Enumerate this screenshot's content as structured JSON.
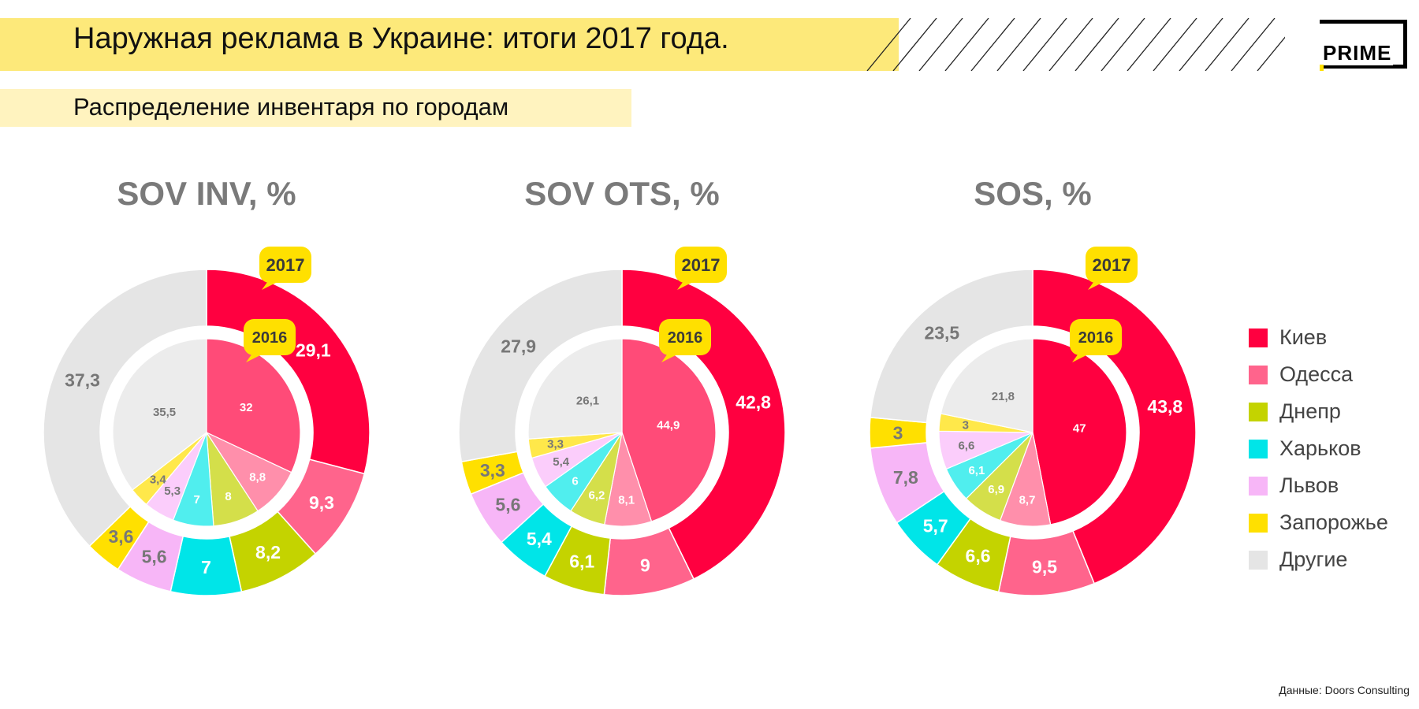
{
  "header": {
    "title": "Наружная реклама в Украине: итоги 2017 года.",
    "subtitle": "Распределение инвентаря по городам",
    "logo_text": "PRIME"
  },
  "source": "Данные: Doors Consulting",
  "legend": [
    {
      "label": "Киев",
      "color": "#ff0040"
    },
    {
      "label": "Одесса",
      "color": "#ff648c"
    },
    {
      "label": "Днепр",
      "color": "#c4d300"
    },
    {
      "label": "Харьков",
      "color": "#00e5e8"
    },
    {
      "label": "Львов",
      "color": "#f7b6f7"
    },
    {
      "label": "Запорожье",
      "color": "#ffe000"
    },
    {
      "label": "Другие",
      "color": "#e5e5e5"
    }
  ],
  "callouts": {
    "outer": "2017",
    "inner": "2016"
  },
  "chart_data": [
    {
      "type": "pie",
      "title": "SOV INV, %",
      "categories": [
        "Киев",
        "Одесса",
        "Днепр",
        "Харьков",
        "Львов",
        "Запорожье",
        "Другие"
      ],
      "series": [
        {
          "name": "2017",
          "values": [
            29.1,
            9.3,
            8.2,
            7,
            5.6,
            3.6,
            37.3
          ],
          "labels": [
            "29,1",
            "9,3",
            "8,2",
            "7",
            "5,6",
            "3,6",
            "37,3"
          ]
        },
        {
          "name": "2016",
          "values": [
            32,
            8.8,
            8,
            7,
            5.3,
            3.4,
            35.5
          ],
          "labels": [
            "32",
            "8,8",
            "8",
            "7",
            "5,3",
            "3,4",
            "35,5"
          ]
        }
      ]
    },
    {
      "type": "pie",
      "title": "SOV OTS, %",
      "categories": [
        "Киев",
        "Одесса",
        "Днепр",
        "Харьков",
        "Львов",
        "Запорожье",
        "Другие"
      ],
      "series": [
        {
          "name": "2017",
          "values": [
            42.8,
            9,
            6.1,
            5.4,
            5.6,
            3.3,
            27.9
          ],
          "labels": [
            "42,8",
            "9",
            "6,1",
            "5,4",
            "5,6",
            "3,3",
            "27,9"
          ]
        },
        {
          "name": "2016",
          "values": [
            44.9,
            8.1,
            6.2,
            6,
            5.4,
            3.3,
            26.1
          ],
          "labels": [
            "44,9",
            "8,1",
            "6,2",
            "6",
            "5,4",
            "3,3",
            "26,1"
          ]
        }
      ]
    },
    {
      "type": "pie",
      "title": "SOS, %",
      "categories": [
        "Киев",
        "Одесса",
        "Днепр",
        "Харьков",
        "Львов",
        "Запорожье",
        "Другие"
      ],
      "series": [
        {
          "name": "2017",
          "values": [
            43.8,
            9.5,
            6.6,
            5.7,
            7.8,
            3,
            23.5
          ],
          "labels": [
            "43,8",
            "9,5",
            "6,6",
            "5,7",
            "7,8",
            "3",
            "23,5"
          ]
        },
        {
          "name": "2016",
          "values": [
            47,
            8.7,
            6.9,
            6.1,
            6.6,
            3,
            21.8
          ],
          "labels": [
            "47",
            "8,7",
            "6,9",
            "6,1",
            "6,6",
            "3",
            "21,8"
          ]
        }
      ]
    }
  ],
  "inner_colors": [
    "#ff4b78",
    "#ff8fab",
    "#d4df4a",
    "#50eeee",
    "#fbcdfb",
    "#ffe84a",
    "#ececec"
  ],
  "sos_inner_kiev_color": "#ff0040"
}
